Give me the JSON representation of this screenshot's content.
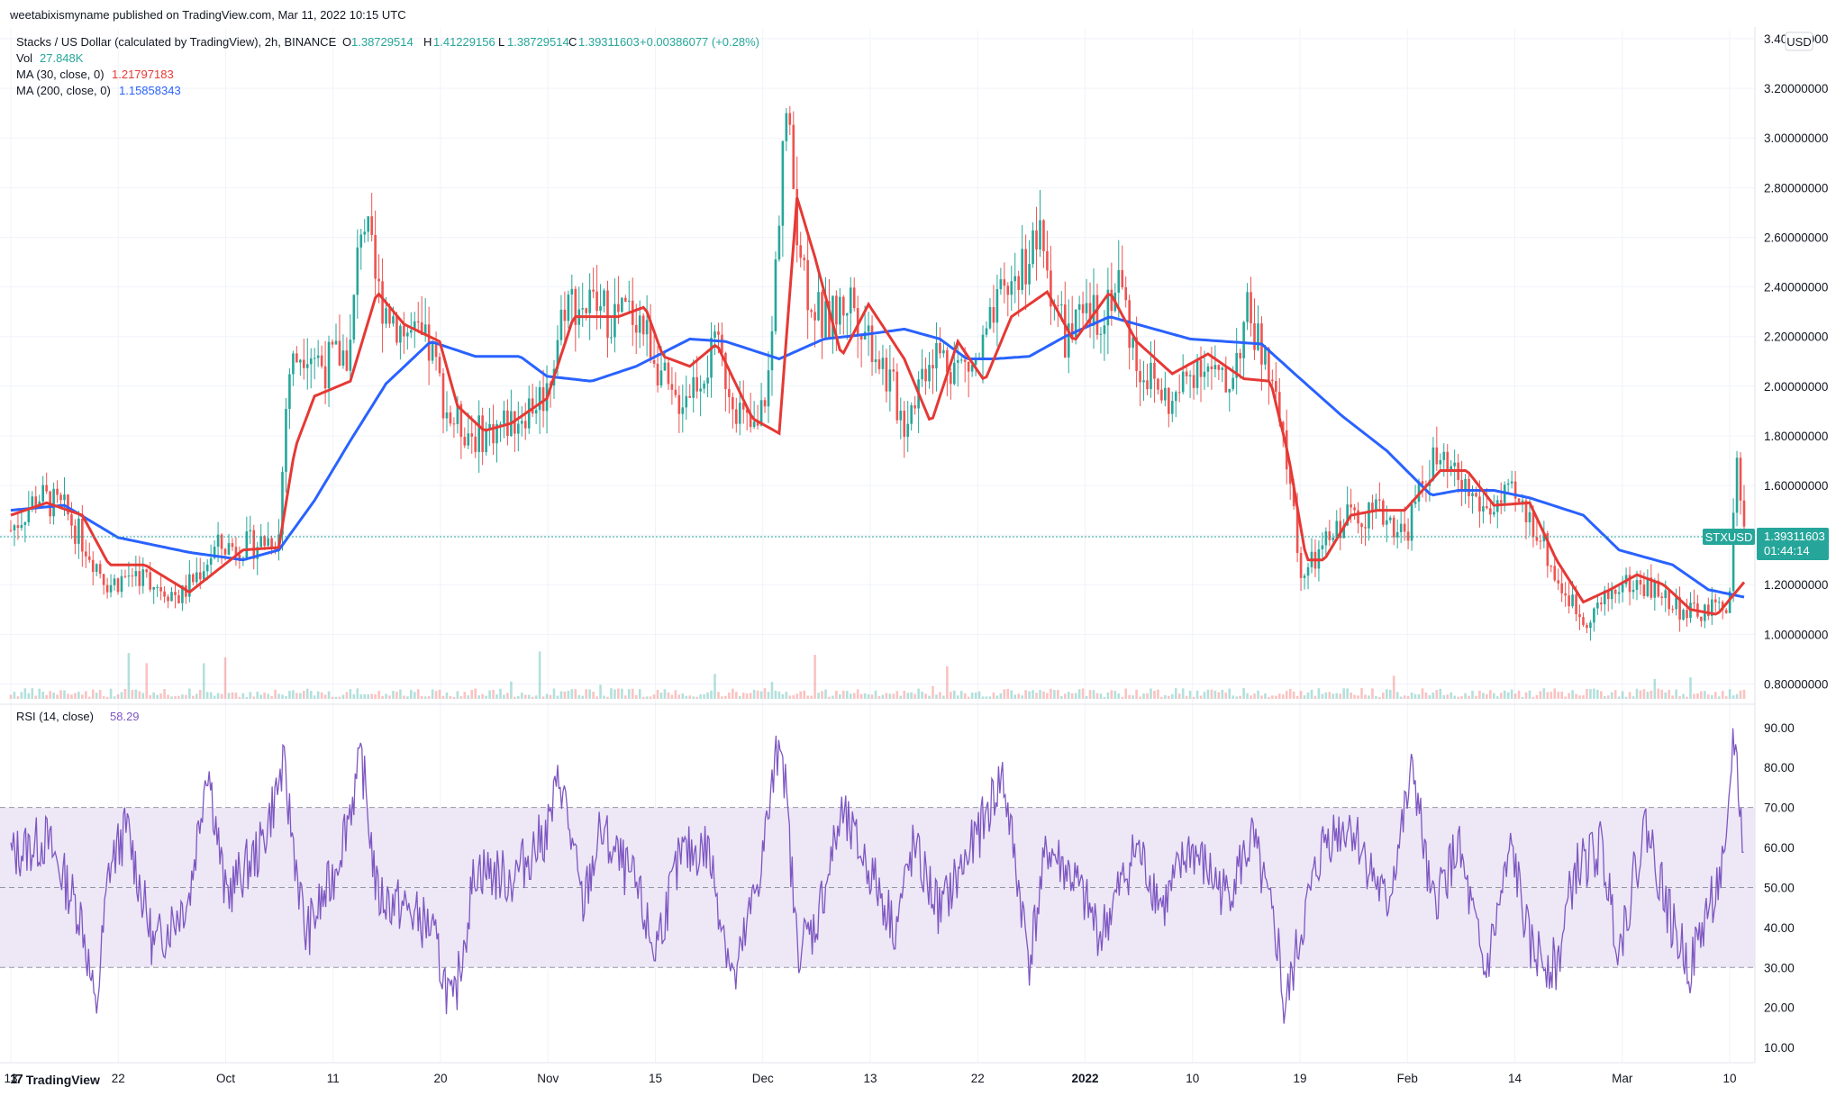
{
  "header": {
    "published": "weetabixismyname published on TradingView.com, Mar 11, 2022 10:15 UTC"
  },
  "legend": {
    "symbol": "Stacks / US Dollar (calculated by TradingView), 2h, BINANCE",
    "o_label": "O",
    "o": "1.38729514",
    "h_label": "H",
    "h": "1.41229156",
    "l_label": "L",
    "l": "1.38729514",
    "c_label": "C",
    "c": "1.39311603",
    "change": "+0.00386077 (+0.28%)",
    "vol_label": "Vol",
    "vol": "27.848K",
    "ma30_label": "MA (30, close, 0)",
    "ma30": "1.21797183",
    "ma200_label": "MA (200, close, 0)",
    "ma200": "1.15858343",
    "rsi_label": "RSI (14, close)",
    "rsi": "58.29"
  },
  "currency_badge": "USD",
  "price_tag": {
    "symbol": "STXUSD",
    "price": "1.39311603",
    "countdown": "01:44:14"
  },
  "footer": {
    "brand": "TradingView"
  },
  "colors": {
    "ma30": "#e53935",
    "ma200": "#2962ff",
    "up": "#26a69a",
    "down": "#ef5350",
    "rsi": "#7e57c2",
    "rsi_band": "#ede7f6",
    "grid": "#f0f3fa",
    "text": "#131722"
  },
  "chart_data": [
    {
      "type": "candlestick",
      "title": "Stacks / US Dollar (calculated by TradingView), 2h, BINANCE",
      "y_scale": "linear",
      "ylim": [
        0.74,
        3.44
      ],
      "y_ticks": [
        "3.40000000",
        "3.20000000",
        "3.00000000",
        "2.80000000",
        "2.60000000",
        "2.40000000",
        "2.20000000",
        "2.00000000",
        "1.80000000",
        "1.60000000",
        "1.40000000",
        "1.20000000",
        "1.00000000",
        "0.80000000"
      ],
      "x_ticks": [
        "13",
        "22",
        "Oct",
        "11",
        "20",
        "Nov",
        "15",
        "Dec",
        "13",
        "22",
        "2022",
        "10",
        "19",
        "Feb",
        "14",
        "Mar",
        "10"
      ],
      "grid": true,
      "last_price": 1.39311603,
      "series": [
        {
          "name": "MA (30, close, 0)",
          "points": [
            [
              0,
              1.48
            ],
            [
              40,
              1.53
            ],
            [
              80,
              1.48
            ],
            [
              110,
              1.28
            ],
            [
              150,
              1.28
            ],
            [
              200,
              1.17
            ],
            [
              260,
              1.34
            ],
            [
              300,
              1.35
            ],
            [
              318,
              1.75
            ],
            [
              340,
              1.96
            ],
            [
              380,
              2.02
            ],
            [
              410,
              2.38
            ],
            [
              440,
              2.25
            ],
            [
              480,
              2.18
            ],
            [
              500,
              1.92
            ],
            [
              530,
              1.82
            ],
            [
              560,
              1.85
            ],
            [
              600,
              1.95
            ],
            [
              630,
              2.28
            ],
            [
              680,
              2.28
            ],
            [
              710,
              2.32
            ],
            [
              730,
              2.12
            ],
            [
              760,
              2.08
            ],
            [
              790,
              2.17
            ],
            [
              830,
              1.87
            ],
            [
              860,
              1.81
            ],
            [
              880,
              2.76
            ],
            [
              900,
              2.52
            ],
            [
              930,
              2.12
            ],
            [
              960,
              2.33
            ],
            [
              1000,
              2.11
            ],
            [
              1030,
              1.85
            ],
            [
              1060,
              2.18
            ],
            [
              1090,
              2.02
            ],
            [
              1120,
              2.28
            ],
            [
              1160,
              2.38
            ],
            [
              1190,
              2.18
            ],
            [
              1230,
              2.38
            ],
            [
              1260,
              2.18
            ],
            [
              1300,
              2.05
            ],
            [
              1340,
              2.13
            ],
            [
              1380,
              2.03
            ],
            [
              1410,
              2.02
            ],
            [
              1430,
              1.72
            ],
            [
              1450,
              1.3
            ],
            [
              1470,
              1.3
            ],
            [
              1500,
              1.48
            ],
            [
              1530,
              1.5
            ],
            [
              1560,
              1.5
            ],
            [
              1600,
              1.66
            ],
            [
              1630,
              1.66
            ],
            [
              1660,
              1.52
            ],
            [
              1700,
              1.53
            ],
            [
              1730,
              1.3
            ],
            [
              1760,
              1.13
            ],
            [
              1790,
              1.18
            ],
            [
              1820,
              1.24
            ],
            [
              1850,
              1.2
            ],
            [
              1880,
              1.1
            ],
            [
              1910,
              1.08
            ],
            [
              1940,
              1.21
            ]
          ]
        },
        {
          "name": "MA (200, close, 0)",
          "points": [
            [
              0,
              1.5
            ],
            [
              60,
              1.52
            ],
            [
              120,
              1.39
            ],
            [
              200,
              1.33
            ],
            [
              260,
              1.3
            ],
            [
              300,
              1.34
            ],
            [
              340,
              1.54
            ],
            [
              380,
              1.78
            ],
            [
              420,
              2.01
            ],
            [
              470,
              2.18
            ],
            [
              520,
              2.12
            ],
            [
              570,
              2.12
            ],
            [
              600,
              2.04
            ],
            [
              650,
              2.02
            ],
            [
              700,
              2.08
            ],
            [
              760,
              2.19
            ],
            [
              800,
              2.18
            ],
            [
              860,
              2.11
            ],
            [
              910,
              2.19
            ],
            [
              960,
              2.21
            ],
            [
              1000,
              2.23
            ],
            [
              1040,
              2.19
            ],
            [
              1070,
              2.11
            ],
            [
              1100,
              2.11
            ],
            [
              1140,
              2.12
            ],
            [
              1180,
              2.2
            ],
            [
              1230,
              2.28
            ],
            [
              1270,
              2.24
            ],
            [
              1320,
              2.19
            ],
            [
              1360,
              2.18
            ],
            [
              1400,
              2.17
            ],
            [
              1440,
              2.04
            ],
            [
              1490,
              1.88
            ],
            [
              1540,
              1.74
            ],
            [
              1590,
              1.56
            ],
            [
              1620,
              1.58
            ],
            [
              1660,
              1.58
            ],
            [
              1700,
              1.55
            ],
            [
              1760,
              1.48
            ],
            [
              1800,
              1.34
            ],
            [
              1860,
              1.28
            ],
            [
              1900,
              1.18
            ],
            [
              1940,
              1.15
            ]
          ]
        },
        {
          "name": "price",
          "points": [
            [
              0,
              1.42
            ],
            [
              30,
              1.56
            ],
            [
              60,
              1.5
            ],
            [
              90,
              1.32
            ],
            [
              110,
              1.2
            ],
            [
              140,
              1.25
            ],
            [
              190,
              1.15
            ],
            [
              230,
              1.35
            ],
            [
              270,
              1.36
            ],
            [
              300,
              1.4
            ],
            [
              310,
              2.05
            ],
            [
              330,
              2.18
            ],
            [
              350,
              2.08
            ],
            [
              380,
              2.15
            ],
            [
              393,
              2.72
            ],
            [
              410,
              2.38
            ],
            [
              440,
              2.22
            ],
            [
              470,
              2.14
            ],
            [
              490,
              1.88
            ],
            [
              520,
              1.8
            ],
            [
              560,
              1.86
            ],
            [
              600,
              1.98
            ],
            [
              620,
              2.35
            ],
            [
              650,
              2.32
            ],
            [
              680,
              2.28
            ],
            [
              700,
              2.3
            ],
            [
              720,
              2.14
            ],
            [
              740,
              1.92
            ],
            [
              760,
              2.0
            ],
            [
              790,
              2.14
            ],
            [
              820,
              1.86
            ],
            [
              835,
              1.8
            ],
            [
              850,
              2.08
            ],
            [
              866,
              3.14
            ],
            [
              880,
              2.68
            ],
            [
              890,
              2.42
            ],
            [
              910,
              2.24
            ],
            [
              940,
              2.36
            ],
            [
              970,
              2.14
            ],
            [
              1000,
              1.86
            ],
            [
              1030,
              2.15
            ],
            [
              1060,
              2.08
            ],
            [
              1080,
              2.08
            ],
            [
              1110,
              2.35
            ],
            [
              1150,
              2.6
            ],
            [
              1180,
              2.2
            ],
            [
              1220,
              2.3
            ],
            [
              1240,
              2.44
            ],
            [
              1260,
              2.1
            ],
            [
              1300,
              1.92
            ],
            [
              1330,
              2.12
            ],
            [
              1360,
              1.98
            ],
            [
              1385,
              2.3
            ],
            [
              1410,
              2.02
            ],
            [
              1430,
              1.66
            ],
            [
              1445,
              1.22
            ],
            [
              1470,
              1.35
            ],
            [
              1500,
              1.5
            ],
            [
              1540,
              1.48
            ],
            [
              1560,
              1.4
            ],
            [
              1590,
              1.7
            ],
            [
              1620,
              1.62
            ],
            [
              1650,
              1.5
            ],
            [
              1680,
              1.55
            ],
            [
              1710,
              1.42
            ],
            [
              1730,
              1.22
            ],
            [
              1760,
              1.06
            ],
            [
              1780,
              1.12
            ],
            [
              1800,
              1.2
            ],
            [
              1830,
              1.2
            ],
            [
              1850,
              1.15
            ],
            [
              1880,
              1.08
            ],
            [
              1910,
              1.1
            ],
            [
              1925,
              1.15
            ],
            [
              1930,
              1.78
            ],
            [
              1940,
              1.39
            ]
          ]
        }
      ]
    },
    {
      "type": "line",
      "title": "RSI (14, close)",
      "ylim": [
        8,
        94
      ],
      "y_ticks": [
        "90.00",
        "80.00",
        "70.00",
        "60.00",
        "50.00",
        "40.00",
        "30.00",
        "20.00",
        "10.00"
      ],
      "band": [
        30,
        70
      ],
      "midline": 50,
      "series": [
        {
          "name": "RSI (14, close)",
          "points": [
            [
              0,
              58
            ],
            [
              40,
              62
            ],
            [
              80,
              42
            ],
            [
              95,
              18
            ],
            [
              110,
              55
            ],
            [
              130,
              65
            ],
            [
              160,
              35
            ],
            [
              200,
              48
            ],
            [
              220,
              82
            ],
            [
              240,
              48
            ],
            [
              280,
              60
            ],
            [
              305,
              80
            ],
            [
              330,
              38
            ],
            [
              360,
              52
            ],
            [
              393,
              82
            ],
            [
              410,
              48
            ],
            [
              440,
              45
            ],
            [
              470,
              40
            ],
            [
              495,
              19
            ],
            [
              520,
              55
            ],
            [
              560,
              52
            ],
            [
              600,
              64
            ],
            [
              615,
              78
            ],
            [
              640,
              45
            ],
            [
              660,
              64
            ],
            [
              700,
              50
            ],
            [
              720,
              34
            ],
            [
              750,
              58
            ],
            [
              780,
              60
            ],
            [
              810,
              26
            ],
            [
              840,
              56
            ],
            [
              862,
              90
            ],
            [
              880,
              35
            ],
            [
              900,
              40
            ],
            [
              930,
              68
            ],
            [
              960,
              55
            ],
            [
              990,
              40
            ],
            [
              1010,
              60
            ],
            [
              1040,
              44
            ],
            [
              1080,
              62
            ],
            [
              1110,
              78
            ],
            [
              1140,
              32
            ],
            [
              1160,
              60
            ],
            [
              1190,
              52
            ],
            [
              1220,
              38
            ],
            [
              1260,
              60
            ],
            [
              1290,
              45
            ],
            [
              1320,
              60
            ],
            [
              1360,
              48
            ],
            [
              1390,
              62
            ],
            [
              1420,
              34
            ],
            [
              1425,
              18
            ],
            [
              1445,
              40
            ],
            [
              1470,
              62
            ],
            [
              1500,
              66
            ],
            [
              1540,
              45
            ],
            [
              1570,
              80
            ],
            [
              1590,
              45
            ],
            [
              1620,
              60
            ],
            [
              1650,
              28
            ],
            [
              1680,
              60
            ],
            [
              1700,
              35
            ],
            [
              1730,
              30
            ],
            [
              1750,
              54
            ],
            [
              1780,
              60
            ],
            [
              1800,
              35
            ],
            [
              1830,
              66
            ],
            [
              1860,
              40
            ],
            [
              1880,
              30
            ],
            [
              1900,
              45
            ],
            [
              1920,
              56
            ],
            [
              1928,
              90
            ],
            [
              1940,
              58
            ]
          ]
        }
      ]
    }
  ]
}
